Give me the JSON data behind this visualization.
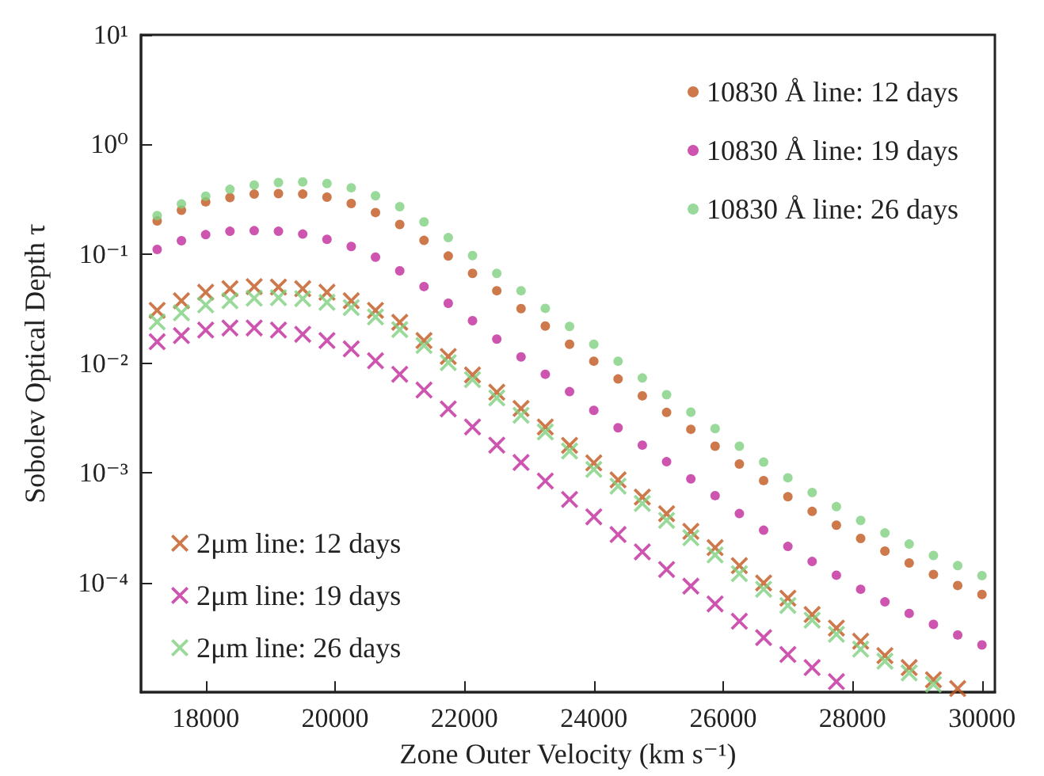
{
  "chart_data": {
    "type": "scatter",
    "xlabel": "Zone Outer Velocity (km s⁻¹)",
    "ylabel": "Sobolev Optical Depth τ",
    "x": [
      17250,
      17625,
      18000,
      18375,
      18750,
      19125,
      19500,
      19875,
      20250,
      20625,
      21000,
      21375,
      21750,
      22125,
      22500,
      22875,
      23250,
      23625,
      24000,
      24375,
      24750,
      25125,
      25500,
      25875,
      26250,
      26625,
      27000,
      27375,
      27750,
      28125,
      28500,
      28875,
      29250,
      29625,
      30000
    ],
    "xlim": [
      17000,
      30200
    ],
    "xticks": [
      18000,
      20000,
      22000,
      24000,
      26000,
      28000,
      30000
    ],
    "log": "y",
    "ylim": [
      1e-05,
      10
    ],
    "yticks": [
      {
        "value": 0.0001,
        "label": "10⁻⁴"
      },
      {
        "value": 0.001,
        "label": "10⁻³"
      },
      {
        "value": 0.01,
        "label": "10⁻²"
      },
      {
        "value": 0.1,
        "label": "10⁻¹"
      },
      {
        "value": 1,
        "label": "10⁰"
      },
      {
        "value": 10,
        "label": "10¹"
      }
    ],
    "grid": false,
    "legend": [
      "top right",
      "bottom left"
    ],
    "series": [
      {
        "name": "10830 Å line: 12 days",
        "color": "#c0571e",
        "marker": "circle",
        "values": [
          0.2,
          0.251,
          0.299,
          0.327,
          0.352,
          0.356,
          0.352,
          0.33,
          0.289,
          0.239,
          0.186,
          0.133,
          0.0957,
          0.0665,
          0.0462,
          0.0317,
          0.022,
          0.015,
          0.0105,
          0.00723,
          0.00507,
          0.00358,
          0.00251,
          0.00176,
          0.00121,
          0.000855,
          0.000608,
          0.000447,
          0.000335,
          0.000253,
          0.000194,
          0.000151,
          0.000119,
          9.42e-05,
          7.8e-05
        ]
      },
      {
        "name": "10830 Å line: 19 days",
        "color": "#c02b9b",
        "marker": "circle",
        "values": [
          0.11,
          0.132,
          0.15,
          0.161,
          0.163,
          0.161,
          0.152,
          0.136,
          0.117,
          0.0936,
          0.0702,
          0.0504,
          0.0355,
          0.0246,
          0.0167,
          0.0115,
          0.00798,
          0.00554,
          0.00374,
          0.00259,
          0.0018,
          0.00127,
          0.000885,
          0.000623,
          0.000427,
          0.000301,
          0.000214,
          0.000156,
          0.000117,
          8.71e-05,
          6.68e-05,
          5.24e-05,
          4.16e-05,
          3.33e-05,
          2.7e-05
        ]
      },
      {
        "name": "10830 Å line: 26 days",
        "color": "#7fcf7f",
        "marker": "circle",
        "values": [
          0.224,
          0.286,
          0.337,
          0.389,
          0.426,
          0.449,
          0.455,
          0.44,
          0.402,
          0.34,
          0.27,
          0.196,
          0.141,
          0.0968,
          0.0665,
          0.0462,
          0.0319,
          0.0218,
          0.015,
          0.0105,
          0.00738,
          0.00519,
          0.0036,
          0.00255,
          0.00176,
          0.00126,
          0.000906,
          0.000665,
          0.000494,
          0.00037,
          0.000284,
          0.000225,
          0.000177,
          0.000143,
          0.000116
        ]
      },
      {
        "name": "2μm line: 12 days",
        "color": "#c0571e",
        "marker": "cross",
        "values": [
          0.0306,
          0.0374,
          0.0447,
          0.0482,
          0.0504,
          0.0499,
          0.0482,
          0.0447,
          0.0374,
          0.0306,
          0.0238,
          0.0162,
          0.0116,
          0.00787,
          0.00547,
          0.00389,
          0.00264,
          0.00179,
          0.00124,
          0.000867,
          0.000604,
          0.000426,
          0.000294,
          0.000209,
          0.000143,
          9.93e-05,
          7.22e-05,
          5.12e-05,
          3.85e-05,
          2.92e-05,
          2.16e-05,
          1.68e-05,
          1.3e-05,
          1.08e-05,
          null
        ]
      },
      {
        "name": "2μm line: 19 days",
        "color": "#c02b9b",
        "marker": "cross",
        "values": [
          0.0158,
          0.018,
          0.0202,
          0.0211,
          0.0211,
          0.0202,
          0.0185,
          0.0162,
          0.0136,
          0.0106,
          0.00798,
          0.00573,
          0.00385,
          0.00264,
          0.0018,
          0.00125,
          0.000847,
          0.000575,
          0.000399,
          0.000275,
          0.000191,
          0.000132,
          9.29e-05,
          6.4e-05,
          4.44e-05,
          3.15e-05,
          2.21e-05,
          1.68e-05,
          1.25e-05,
          null,
          null,
          null,
          null,
          null,
          null
        ]
      },
      {
        "name": "2μm line: 26 days",
        "color": "#7fcf7f",
        "marker": "cross",
        "values": [
          0.024,
          0.029,
          0.0343,
          0.0374,
          0.0395,
          0.0399,
          0.0391,
          0.0362,
          0.0324,
          0.0266,
          0.0204,
          0.0146,
          0.0102,
          0.00713,
          0.00485,
          0.00337,
          0.00237,
          0.00159,
          0.00108,
          0.00076,
          0.000528,
          0.00037,
          0.000257,
          0.000179,
          0.000121,
          8.71e-05,
          6.19e-05,
          4.55e-05,
          3.38e-05,
          2.47e-05,
          1.92e-05,
          1.5e-05,
          1.18e-05,
          null,
          null
        ]
      }
    ]
  }
}
